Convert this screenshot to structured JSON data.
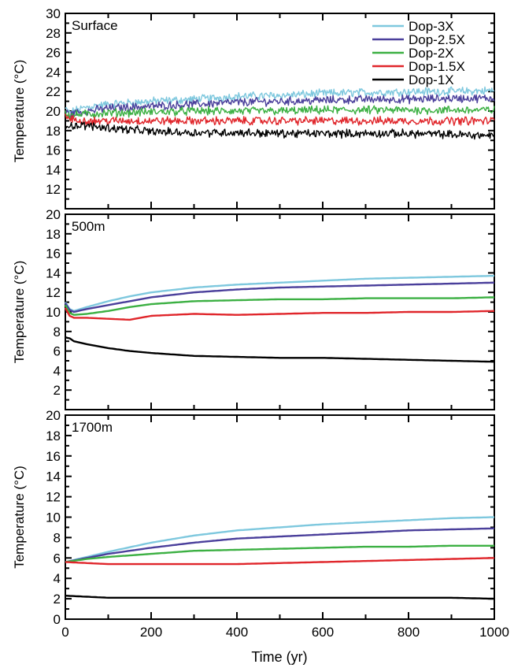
{
  "figure": {
    "xlabel": "Time (yr)"
  },
  "chart_data": [
    {
      "type": "line",
      "panel_label": "Surface",
      "ylabel": "Temperature (°C)",
      "xlim": [
        0,
        1000
      ],
      "ylim": [
        10,
        30
      ],
      "yticks": [
        12,
        14,
        16,
        18,
        20,
        22,
        24,
        26,
        28,
        30
      ],
      "xticks": [
        0,
        200,
        400,
        600,
        800,
        1000
      ],
      "legend": {
        "placement": "top-right",
        "entries": [
          {
            "name": "Dop-3X",
            "color": "#7ec8de"
          },
          {
            "name": "Dop-2.5X",
            "color": "#4a3f9b"
          },
          {
            "name": "Dop-2X",
            "color": "#3cb043"
          },
          {
            "name": "Dop-1.5X",
            "color": "#e0262b"
          },
          {
            "name": "Dop-1X",
            "color": "#000000"
          }
        ]
      },
      "noisy": true,
      "series": [
        {
          "name": "Dop-3X",
          "color": "#7ec8de",
          "x": [
            0,
            10,
            20,
            50,
            100,
            200,
            300,
            400,
            500,
            600,
            700,
            800,
            900,
            1000
          ],
          "values": [
            20.2,
            19.8,
            20.0,
            20.4,
            20.7,
            21.0,
            21.2,
            21.5,
            21.6,
            21.8,
            21.9,
            22.0,
            22.0,
            22.1
          ]
        },
        {
          "name": "Dop-2.5X",
          "color": "#4a3f9b",
          "x": [
            0,
            10,
            20,
            50,
            100,
            200,
            300,
            400,
            500,
            600,
            700,
            800,
            900,
            1000
          ],
          "values": [
            20.0,
            19.6,
            19.8,
            20.0,
            20.3,
            20.5,
            20.7,
            20.9,
            21.0,
            21.1,
            21.2,
            21.2,
            21.3,
            21.3
          ]
        },
        {
          "name": "Dop-2X",
          "color": "#3cb043",
          "x": [
            0,
            10,
            20,
            50,
            100,
            200,
            300,
            400,
            500,
            600,
            700,
            800,
            900,
            1000
          ],
          "values": [
            19.9,
            19.5,
            19.6,
            19.7,
            19.8,
            19.9,
            20.0,
            20.0,
            20.0,
            20.1,
            20.1,
            20.1,
            20.1,
            20.1
          ]
        },
        {
          "name": "Dop-1.5X",
          "color": "#e0262b",
          "x": [
            0,
            10,
            20,
            50,
            100,
            200,
            300,
            400,
            500,
            600,
            700,
            800,
            900,
            1000
          ],
          "values": [
            19.6,
            19.2,
            19.1,
            19.0,
            19.0,
            19.0,
            19.0,
            19.0,
            19.0,
            19.0,
            19.0,
            19.0,
            19.0,
            19.0
          ]
        },
        {
          "name": "Dop-1X",
          "color": "#000000",
          "x": [
            0,
            10,
            20,
            50,
            100,
            200,
            300,
            400,
            500,
            600,
            700,
            800,
            900,
            1000
          ],
          "values": [
            18.6,
            18.6,
            18.5,
            18.5,
            18.3,
            17.9,
            17.8,
            17.8,
            17.7,
            17.7,
            17.7,
            17.7,
            17.6,
            17.5
          ]
        }
      ]
    },
    {
      "type": "line",
      "panel_label": "500m",
      "ylabel": "Temperature (°C)",
      "xlim": [
        0,
        1000
      ],
      "ylim": [
        0,
        20
      ],
      "yticks": [
        2,
        4,
        6,
        8,
        10,
        12,
        14,
        16,
        18,
        20
      ],
      "xticks": [
        0,
        200,
        400,
        600,
        800,
        1000
      ],
      "noisy": false,
      "series": [
        {
          "name": "Dop-3X",
          "color": "#7ec8de",
          "x": [
            0,
            10,
            20,
            50,
            100,
            150,
            200,
            300,
            400,
            500,
            600,
            700,
            800,
            900,
            1000
          ],
          "values": [
            11.0,
            10.3,
            10.1,
            10.5,
            11.1,
            11.6,
            12.0,
            12.5,
            12.8,
            13.0,
            13.2,
            13.4,
            13.5,
            13.6,
            13.7
          ]
        },
        {
          "name": "Dop-2.5X",
          "color": "#4a3f9b",
          "x": [
            0,
            10,
            20,
            50,
            100,
            150,
            200,
            300,
            400,
            500,
            600,
            700,
            800,
            900,
            1000
          ],
          "values": [
            10.9,
            10.2,
            10.0,
            10.3,
            10.7,
            11.1,
            11.5,
            12.0,
            12.3,
            12.5,
            12.6,
            12.7,
            12.8,
            12.9,
            13.0
          ]
        },
        {
          "name": "Dop-2X",
          "color": "#3cb043",
          "x": [
            0,
            10,
            20,
            50,
            100,
            150,
            200,
            300,
            400,
            500,
            600,
            700,
            800,
            900,
            1000
          ],
          "values": [
            10.7,
            9.9,
            9.7,
            9.8,
            10.1,
            10.5,
            10.8,
            11.1,
            11.2,
            11.3,
            11.3,
            11.4,
            11.4,
            11.4,
            11.5
          ]
        },
        {
          "name": "Dop-1.5X",
          "color": "#e0262b",
          "x": [
            0,
            10,
            20,
            50,
            100,
            150,
            200,
            300,
            400,
            500,
            600,
            700,
            800,
            900,
            1000
          ],
          "values": [
            10.4,
            9.6,
            9.4,
            9.4,
            9.3,
            9.2,
            9.6,
            9.8,
            9.7,
            9.8,
            9.9,
            9.9,
            10.0,
            10.0,
            10.1
          ]
        },
        {
          "name": "Dop-1X",
          "color": "#000000",
          "x": [
            0,
            10,
            20,
            50,
            100,
            150,
            200,
            300,
            400,
            500,
            600,
            700,
            800,
            900,
            1000
          ],
          "values": [
            7.4,
            7.3,
            7.0,
            6.7,
            6.3,
            6.0,
            5.8,
            5.5,
            5.4,
            5.3,
            5.3,
            5.2,
            5.1,
            5.0,
            4.9
          ]
        }
      ]
    },
    {
      "type": "line",
      "panel_label": "1700m",
      "ylabel": "Temperature (°C)",
      "xlim": [
        0,
        1000
      ],
      "ylim": [
        0,
        20
      ],
      "yticks": [
        0,
        2,
        4,
        6,
        8,
        10,
        12,
        14,
        16,
        18,
        20
      ],
      "xticks": [
        0,
        200,
        400,
        600,
        800,
        1000
      ],
      "noisy": false,
      "series": [
        {
          "name": "Dop-3X",
          "color": "#7ec8de",
          "x": [
            0,
            50,
            100,
            200,
            300,
            400,
            500,
            600,
            700,
            800,
            900,
            1000
          ],
          "values": [
            5.6,
            6.1,
            6.6,
            7.5,
            8.2,
            8.7,
            9.0,
            9.3,
            9.5,
            9.7,
            9.9,
            10.0
          ]
        },
        {
          "name": "Dop-2.5X",
          "color": "#4a3f9b",
          "x": [
            0,
            50,
            100,
            200,
            300,
            400,
            500,
            600,
            700,
            800,
            900,
            1000
          ],
          "values": [
            5.6,
            6.0,
            6.4,
            7.0,
            7.5,
            7.9,
            8.1,
            8.3,
            8.5,
            8.7,
            8.8,
            8.9
          ]
        },
        {
          "name": "Dop-2X",
          "color": "#3cb043",
          "x": [
            0,
            50,
            100,
            200,
            300,
            400,
            500,
            600,
            700,
            800,
            900,
            1000
          ],
          "values": [
            5.6,
            5.9,
            6.1,
            6.4,
            6.7,
            6.8,
            6.9,
            7.0,
            7.1,
            7.1,
            7.2,
            7.2
          ]
        },
        {
          "name": "Dop-1.5X",
          "color": "#e0262b",
          "x": [
            0,
            50,
            100,
            200,
            300,
            400,
            500,
            600,
            700,
            800,
            900,
            1000
          ],
          "values": [
            5.6,
            5.5,
            5.4,
            5.4,
            5.4,
            5.4,
            5.5,
            5.6,
            5.7,
            5.8,
            5.9,
            6.0
          ]
        },
        {
          "name": "Dop-1X",
          "color": "#000000",
          "x": [
            0,
            50,
            100,
            200,
            300,
            400,
            500,
            600,
            700,
            800,
            900,
            1000
          ],
          "values": [
            2.3,
            2.2,
            2.1,
            2.1,
            2.1,
            2.1,
            2.1,
            2.1,
            2.1,
            2.1,
            2.1,
            2.0
          ]
        }
      ]
    }
  ]
}
